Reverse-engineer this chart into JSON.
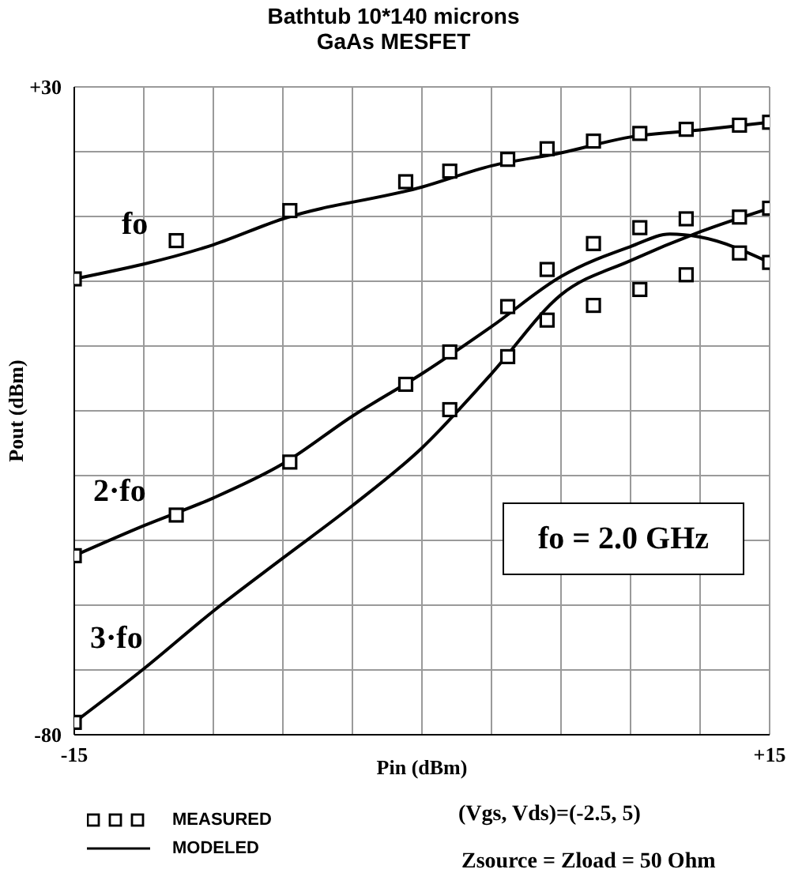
{
  "chart_data": {
    "type": "line",
    "title": "Bathtub 10*140 microns",
    "subtitle": "GaAs MESFET",
    "xlabel": "Pin (dBm)",
    "ylabel": "Pout (dBm)",
    "xlim": [
      -15,
      15
    ],
    "xticks": [
      -15,
      {
        "value": -12,
        "label": null
      },
      {
        "value": -9,
        "label": null
      },
      {
        "value": -6,
        "label": null
      },
      {
        "value": -3,
        "label": null
      },
      {
        "value": 0,
        "label": null
      },
      {
        "value": 3,
        "label": null
      },
      {
        "value": 6,
        "label": null
      },
      {
        "value": 9,
        "label": null
      },
      {
        "value": 12,
        "label": null
      },
      {
        "value": 15,
        "label": "+15"
      }
    ],
    "ylim": [
      -80,
      30
    ],
    "yticks": [
      -80,
      {
        "value": -69,
        "label": null
      },
      {
        "value": -58,
        "label": null
      },
      {
        "value": -47,
        "label": null
      },
      {
        "value": -36,
        "label": null
      },
      {
        "value": -25,
        "label": null
      },
      {
        "value": -14,
        "label": null
      },
      {
        "value": -3,
        "label": null
      },
      {
        "value": 8,
        "label": null
      },
      {
        "value": 19,
        "label": null
      },
      {
        "value": 30,
        "label": "+30"
      }
    ],
    "grid": true,
    "legend": "bottom",
    "line_style": "solid",
    "series": [
      {
        "name": "MEASURED",
        "type": "scatter",
        "marker": "square",
        "color": "#000000",
        "x": [
          -15,
          -10.6,
          -5.7,
          -0.7,
          1.2,
          3.7,
          5.4,
          7.4,
          9.4,
          11.4,
          13.7,
          15
        ],
        "values": [
          -2.6,
          3.9,
          9,
          13.9,
          15.7,
          17.7,
          19.5,
          20.8,
          22.1,
          22.8,
          23.5,
          24
        ]
      },
      {
        "type": "scatter",
        "marker": "square",
        "color": "#000000",
        "x": [
          -15,
          -10.6,
          -5.7,
          -0.7,
          1.2,
          3.7,
          5.4,
          7.4,
          9.4,
          11.4,
          13.7,
          15
        ],
        "values": [
          -49.6,
          -42.7,
          -33.7,
          -20.5,
          -15,
          -7.3,
          -1,
          3.4,
          6.1,
          7.6,
          1.8,
          0.2
        ]
      },
      {
        "type": "scatter",
        "marker": "square",
        "color": "#000000",
        "x": [
          -15,
          1.2,
          3.7,
          5.4,
          7.4,
          9.4,
          11.4,
          13.7,
          15
        ],
        "values": [
          -77.9,
          -24.8,
          -15.8,
          -9.6,
          -7.1,
          -4.4,
          -1.9,
          7.9,
          9.4
        ]
      },
      {
        "name": "fo",
        "marker": "none",
        "color": "#000000",
        "x": [
          -15,
          -9,
          -6,
          0,
          3,
          6,
          9,
          12,
          15
        ],
        "values": [
          -2.6,
          3.2,
          7.6,
          13,
          16.6,
          18.8,
          21.5,
          22.7,
          24
        ]
      },
      {
        "name": "2·fo",
        "marker": "none",
        "color": "#000000",
        "x": [
          -15,
          -12,
          -9,
          -6,
          -3,
          0,
          3,
          6,
          9,
          10.7,
          12,
          15
        ],
        "values": [
          -49.6,
          -44.5,
          -39.8,
          -34,
          -25.9,
          -18.7,
          -10.7,
          -2.2,
          2.9,
          5,
          4.5,
          0.2
        ]
      },
      {
        "name": "3·fo",
        "marker": "none",
        "color": "#000000",
        "x": [
          -15,
          -12,
          -9,
          -6,
          -3,
          0,
          3,
          6,
          9,
          12,
          15
        ],
        "values": [
          -77.9,
          -68.8,
          -59,
          -50,
          -41.1,
          -31.3,
          -18.7,
          -5.3,
          0.5,
          5.4,
          9.4
        ]
      }
    ],
    "annotations": [
      "MODELED",
      "fo = 2.0 GHz",
      "(Vgs, Vds)=(-2.5, 5)",
      "Zsource = Zload = 50 Ohm"
    ]
  }
}
